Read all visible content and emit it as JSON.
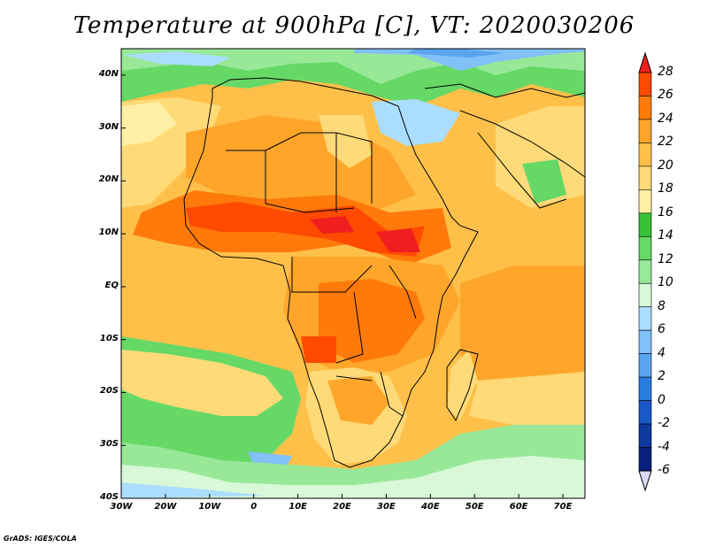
{
  "title": "Temperature at 900hPa [C], VT: 2020030206",
  "credit": "GrADS: IGES/COLA",
  "map": {
    "lat_labels": [
      "40N",
      "30N",
      "20N",
      "10N",
      "EQ",
      "10S",
      "20S",
      "30S",
      "40S"
    ],
    "lon_labels": [
      "30W",
      "20W",
      "10W",
      "0",
      "10E",
      "20E",
      "30E",
      "40E",
      "50E",
      "60E",
      "70E"
    ],
    "lat_range": [
      -40,
      45
    ],
    "lon_range": [
      -30,
      75
    ]
  },
  "colorbar": {
    "ticks": [
      "28",
      "26",
      "24",
      "22",
      "20",
      "18",
      "16",
      "14",
      "12",
      "10",
      "8",
      "6",
      "4",
      "2",
      "0",
      "-2",
      "-4",
      "-6"
    ],
    "colors": [
      "#f01e1e",
      "#ff4a00",
      "#ff7a0a",
      "#ffa62a",
      "#ffc04a",
      "#ffda78",
      "#fff0a6",
      "#38c038",
      "#66d866",
      "#98e898",
      "#d8f8d8",
      "#aaddff",
      "#82c0f8",
      "#5aa4f0",
      "#2a7ce0",
      "#1a58c8",
      "#0e3aa0",
      "#08207a",
      "#d8dcf8"
    ]
  }
}
